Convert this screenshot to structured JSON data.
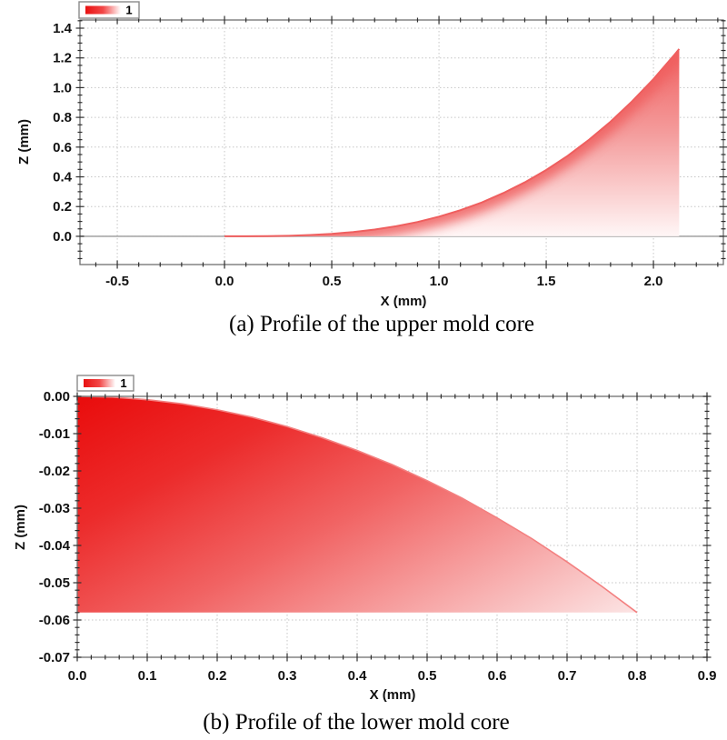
{
  "page": {
    "background": "#ffffff"
  },
  "colors": {
    "series_red": "#e81111",
    "upper_curve_stroke": "#ef5f5f",
    "lower_curve_stroke": "#f38080",
    "zero_line": "#a8a8a8",
    "grid": "#c6c6c6",
    "frame": "#6f6f6f",
    "tick": "#2f2f2f",
    "text": "#111111",
    "legend_border": "#8a8a8a"
  },
  "chart_data": [
    {
      "id": "upper",
      "type": "area",
      "title": "",
      "caption": "(a) Profile of the upper mold core",
      "xlabel": "X (mm)",
      "ylabel": "Z (mm)",
      "legend_entries": [
        "1"
      ],
      "legend_position": "top-left-above-plot",
      "grid": true,
      "xlim": [
        -0.674,
        2.326
      ],
      "ylim": [
        -0.19,
        1.455
      ],
      "xticks": [
        -0.5,
        0.0,
        0.5,
        1.0,
        1.5,
        2.0
      ],
      "xtick_labels": [
        "-0.5",
        "0.0",
        "0.5",
        "1.0",
        "1.5",
        "2.0"
      ],
      "yticks": [
        0.0,
        0.2,
        0.4,
        0.6,
        0.8,
        1.0,
        1.2,
        1.4
      ],
      "ytick_labels": [
        "0.0",
        "0.2",
        "0.4",
        "0.6",
        "0.8",
        "1.0",
        "1.2",
        "1.4"
      ],
      "x_minor_step": 0.1,
      "y_minor_step": 0.05,
      "baseline_z": 0,
      "fill_gradient": {
        "direction": "vertical",
        "stops": [
          [
            0,
            "#f06060"
          ],
          [
            0.45,
            "#f49c9c"
          ],
          [
            1,
            "#fff6f6"
          ]
        ]
      },
      "stroke_color": "#ef5f5f",
      "series": [
        {
          "name": "1",
          "x": [
            0,
            0.1,
            0.2,
            0.3,
            0.4,
            0.5,
            0.6,
            0.7,
            0.8,
            0.9,
            1.0,
            1.1,
            1.2,
            1.3,
            1.4,
            1.5,
            1.6,
            1.7,
            1.8,
            1.9,
            2.0,
            2.1,
            2.12
          ],
          "z": [
            0,
            0.0001,
            0.0011,
            0.0036,
            0.0085,
            0.0165,
            0.0286,
            0.0454,
            0.0677,
            0.0964,
            0.132,
            0.176,
            0.228,
            0.291,
            0.363,
            0.446,
            0.541,
            0.65,
            0.771,
            0.907,
            1.057,
            1.225,
            1.26
          ],
          "close": [
            [
              2.12,
              0
            ]
          ]
        }
      ]
    },
    {
      "id": "lower",
      "type": "area",
      "title": "",
      "caption": "(b) Profile of the lower mold core",
      "xlabel": "X (mm)",
      "ylabel": "Z (mm)",
      "legend_entries": [
        "1"
      ],
      "legend_position": "top-left-above-plot",
      "grid": true,
      "xlim": [
        0,
        0.9
      ],
      "ylim": [
        -0.07,
        0
      ],
      "xticks": [
        0,
        0.1,
        0.2,
        0.3,
        0.4,
        0.5,
        0.6,
        0.7,
        0.8,
        0.9
      ],
      "xtick_labels": [
        "0.0",
        "0.1",
        "0.2",
        "0.3",
        "0.4",
        "0.5",
        "0.6",
        "0.7",
        "0.8",
        "0.9"
      ],
      "yticks": [
        0,
        -0.01,
        -0.02,
        -0.03,
        -0.04,
        -0.05,
        -0.06,
        -0.07
      ],
      "ytick_labels": [
        "0.00",
        "-0.01",
        "-0.02",
        "-0.03",
        "-0.04",
        "-0.05",
        "-0.06",
        "-0.07"
      ],
      "x_minor_step": 0.02,
      "y_minor_step": 0.002,
      "baseline_z": null,
      "fill_gradient": {
        "direction": "diagonal",
        "stops": [
          [
            0,
            "#e90c0c"
          ],
          [
            0.22,
            "#ec2b2b"
          ],
          [
            0.45,
            "#f16363"
          ],
          [
            0.68,
            "#f7a8a8"
          ],
          [
            0.9,
            "#fce9e9"
          ],
          [
            1,
            "#ffffff"
          ]
        ]
      },
      "stroke_color": "#f38080",
      "series": [
        {
          "name": "1",
          "x": [
            0,
            0.05,
            0.1,
            0.15,
            0.2,
            0.25,
            0.3,
            0.35,
            0.4,
            0.45,
            0.5,
            0.55,
            0.6,
            0.65,
            0.7,
            0.75,
            0.8
          ],
          "z": [
            0,
            -0.0002,
            -0.0009,
            -0.002,
            -0.0036,
            -0.0056,
            -0.0081,
            -0.0111,
            -0.0145,
            -0.0183,
            -0.0226,
            -0.0273,
            -0.0326,
            -0.0382,
            -0.0444,
            -0.051,
            -0.058
          ],
          "close": [
            [
              0,
              -0.058
            ]
          ]
        }
      ]
    }
  ]
}
